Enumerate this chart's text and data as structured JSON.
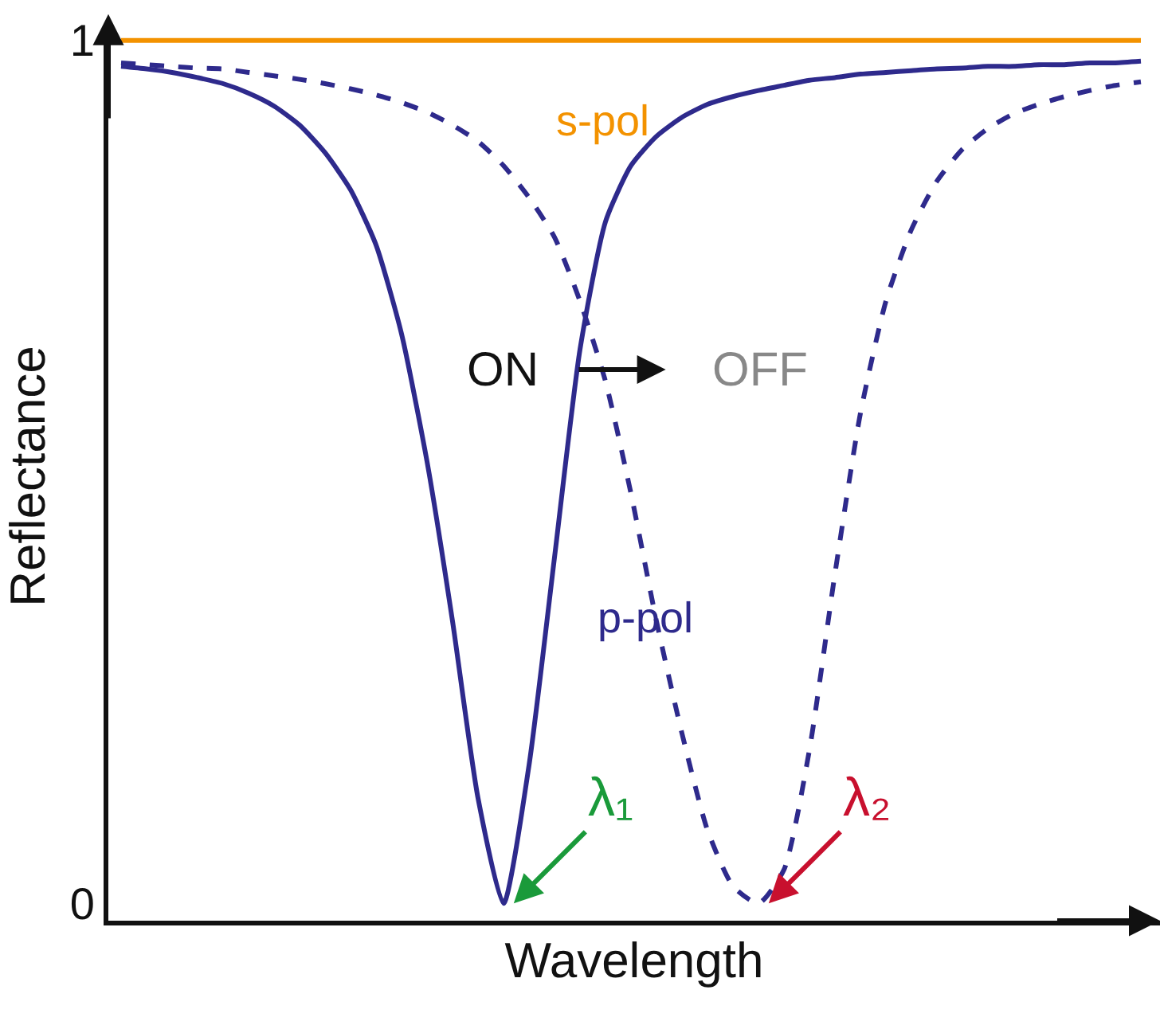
{
  "chart_data": {
    "type": "line",
    "xlabel": "Wavelength",
    "ylabel": "Reflectance",
    "categories": [
      null,
      null,
      null,
      null,
      null,
      null,
      null,
      null,
      null,
      null,
      null,
      null,
      null,
      null,
      null,
      null,
      null,
      null,
      null,
      null,
      null,
      null,
      null,
      null,
      null,
      null,
      null,
      null,
      null,
      null,
      null,
      null,
      null,
      null,
      null,
      null,
      null,
      null,
      null,
      null,
      null
    ],
    "ylim": [
      -0.02,
      1.01
    ],
    "yticks": [
      0,
      1
    ],
    "legend": false,
    "marker": "none",
    "series": [
      {
        "name": "s-pol",
        "color": "#f39200",
        "line_style": "solid",
        "values": [
          1,
          1,
          1,
          1,
          1,
          1,
          1,
          1,
          1,
          1,
          1,
          1,
          1,
          1,
          1,
          1,
          1,
          1,
          1,
          1,
          1,
          1,
          1,
          1,
          1,
          1,
          1,
          1,
          1,
          1,
          1,
          1,
          1,
          1,
          1,
          1,
          1,
          1,
          1,
          1,
          1
        ]
      },
      {
        "name": "p-pol",
        "color": "#2e2a8c",
        "line_style": "solid",
        "values": [
          0.97,
          0.967,
          0.963,
          0.957,
          0.95,
          0.939,
          0.924,
          0.902,
          0.87,
          0.827,
          0.763,
          0.66,
          0.512,
          0.327,
          0.122,
          0.0,
          0.16,
          0.401,
          0.642,
          0.79,
          0.855,
          0.889,
          0.911,
          0.926,
          0.935,
          0.942,
          0.948,
          0.954,
          0.957,
          0.961,
          0.963,
          0.965,
          0.967,
          0.968,
          0.97,
          0.97,
          0.972,
          0.972,
          0.974,
          0.974,
          0.976
        ]
      },
      {
        "color": "#2e2a8c",
        "line_style": "dashed",
        "values": [
          0.974,
          0.972,
          0.97,
          0.968,
          0.967,
          0.963,
          0.959,
          0.955,
          0.95,
          0.944,
          0.937,
          0.928,
          0.917,
          0.902,
          0.883,
          0.855,
          0.818,
          0.772,
          0.698,
          0.605,
          0.475,
          0.327,
          0.197,
          0.085,
          0.02,
          0.0,
          0.039,
          0.178,
          0.382,
          0.568,
          0.698,
          0.781,
          0.837,
          0.874,
          0.898,
          0.915,
          0.926,
          0.935,
          0.942,
          0.948,
          0.952
        ]
      }
    ],
    "annotations": [
      "ON",
      "OFF",
      "λ₁",
      "λ₂"
    ]
  }
}
